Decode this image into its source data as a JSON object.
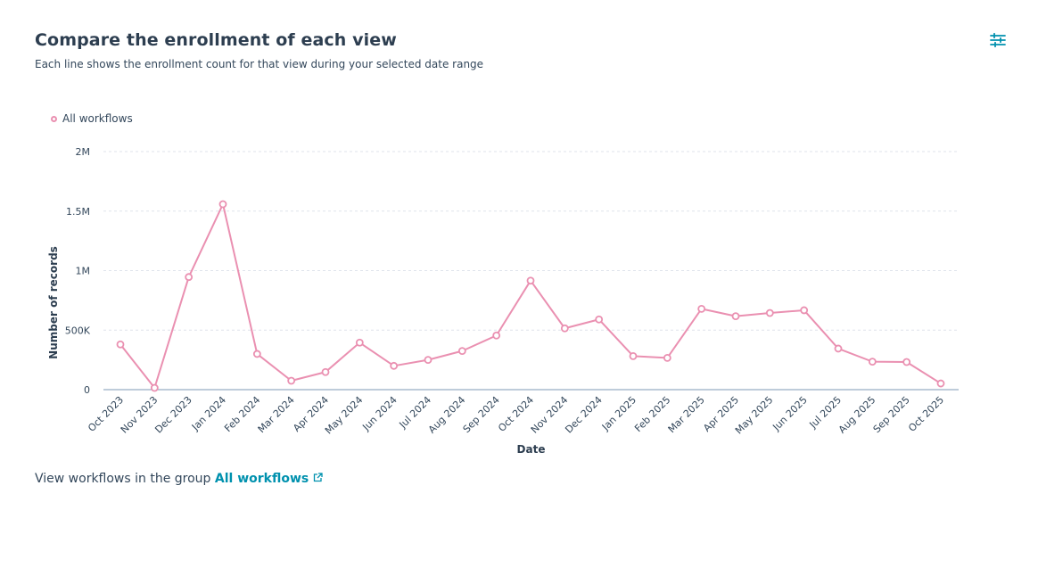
{
  "header": {
    "title": "Compare the enrollment of each view",
    "subtitle": "Each line shows the enrollment count for that view during your selected date range",
    "settings_icon": "sliders-icon"
  },
  "colors": {
    "series": "#ea90b1",
    "link": "#0091ae",
    "text": "#33475b",
    "grid": "#dfe3eb",
    "axis": "#7c98b6"
  },
  "footer": {
    "prefix": "View workflows in the group",
    "link_label": "All workflows",
    "link_icon": "external-link-icon"
  },
  "chart_data": {
    "type": "line",
    "title": "Compare the enrollment of each view",
    "xlabel": "Date",
    "ylabel": "Number of records",
    "ylim": [
      0,
      2000000
    ],
    "yticks": [
      0,
      500000,
      1000000,
      1500000,
      2000000
    ],
    "ytick_labels": [
      "0",
      "500K",
      "1M",
      "1.5M",
      "2M"
    ],
    "grid": true,
    "legend_position": "top-left",
    "categories": [
      "Oct 2023",
      "Nov 2023",
      "Dec 2023",
      "Jan 2024",
      "Feb 2024",
      "Mar 2024",
      "Apr 2024",
      "May 2024",
      "Jun 2024",
      "Jul 2024",
      "Aug 2024",
      "Sep 2024",
      "Oct 2024",
      "Nov 2024",
      "Dec 2024",
      "Jan 2025",
      "Feb 2025",
      "Mar 2025",
      "Apr 2025",
      "May 2025",
      "Jun 2025",
      "Jul 2025",
      "Aug 2025",
      "Sep 2025",
      "Oct 2025"
    ],
    "series": [
      {
        "name": "All workflows",
        "values": [
          380000,
          15000,
          946000,
          1558000,
          300000,
          75000,
          148000,
          395000,
          200000,
          250000,
          325000,
          455000,
          916000,
          515000,
          590000,
          282000,
          267000,
          679000,
          617000,
          644000,
          667000,
          345000,
          235000,
          232000,
          52000
        ]
      }
    ]
  }
}
